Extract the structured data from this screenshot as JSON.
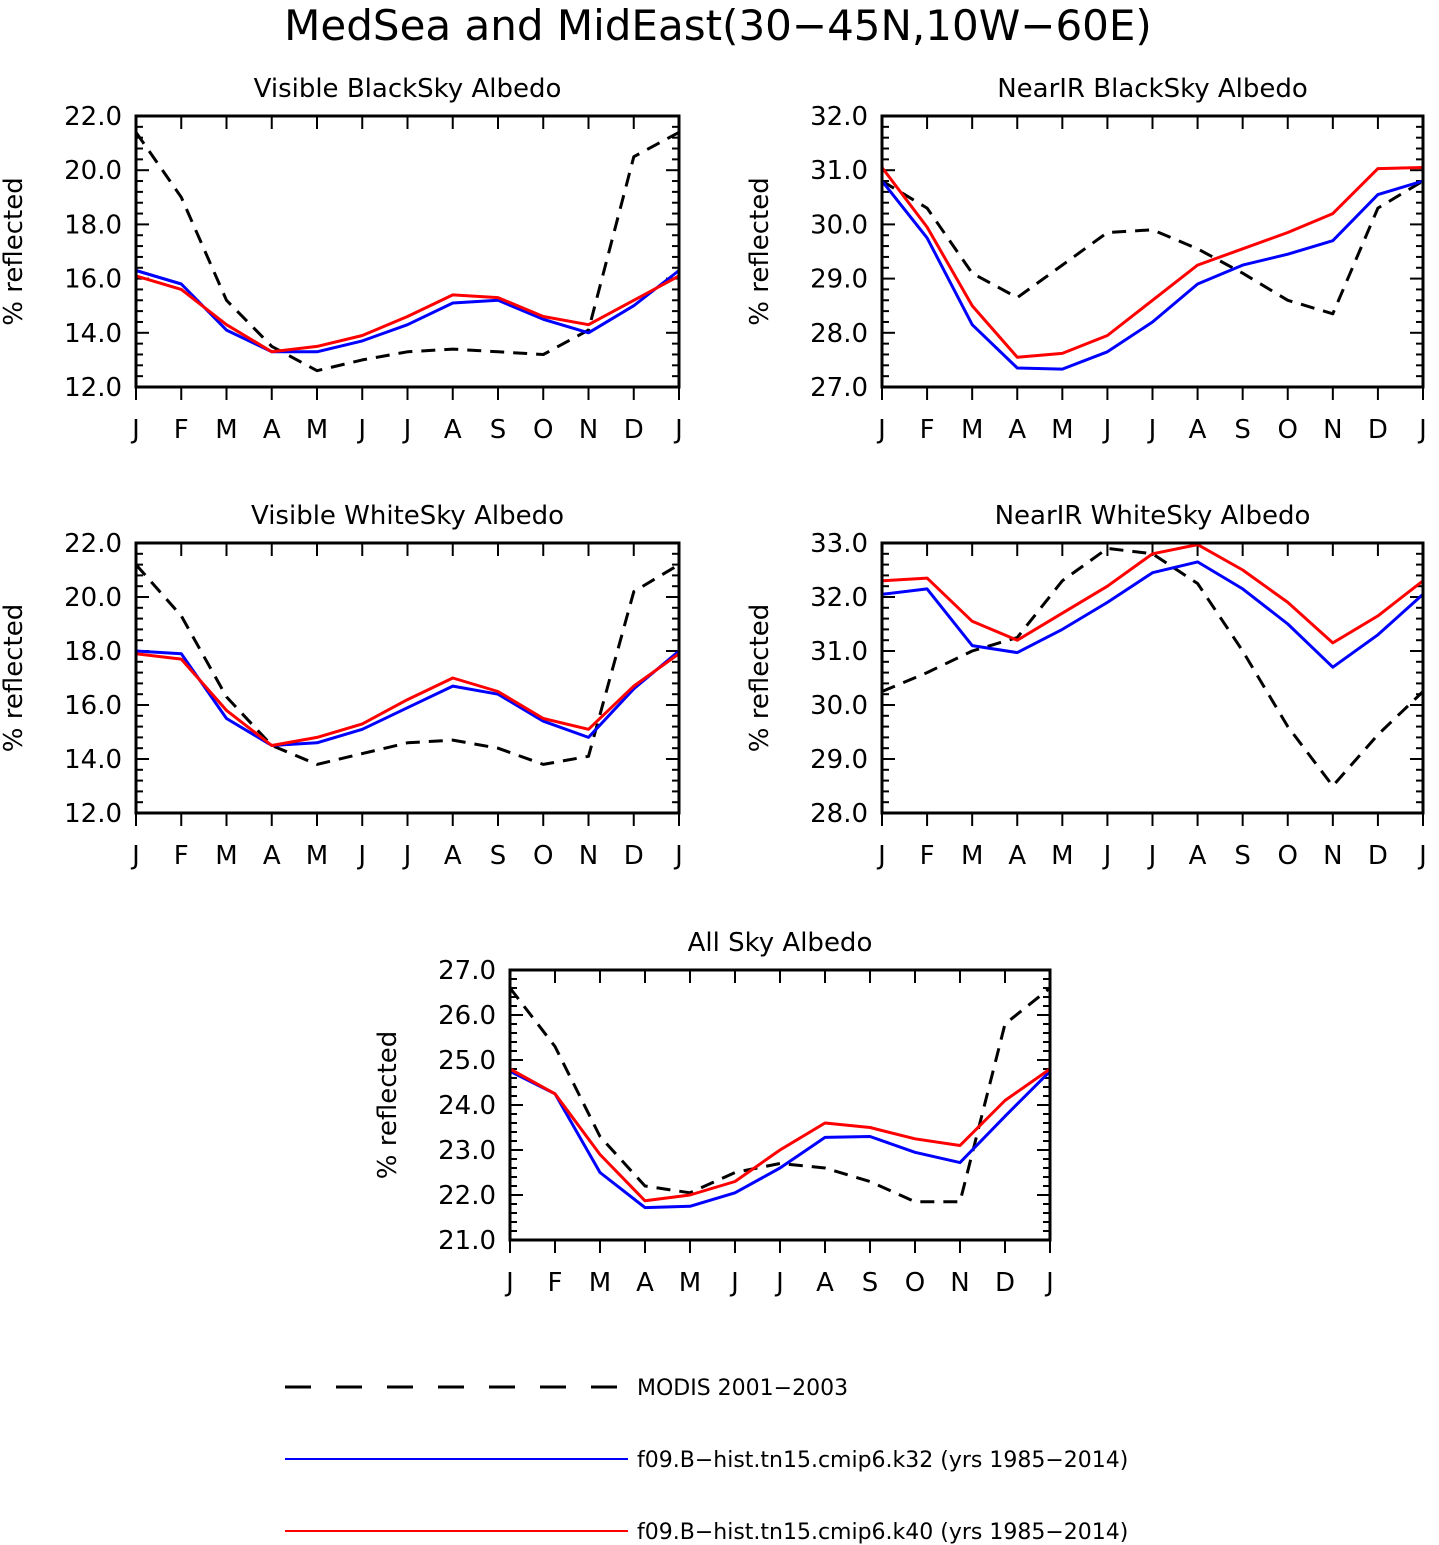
{
  "figure": {
    "title": "MedSea and MidEast(30−45N,10W−60E)"
  },
  "colors": {
    "modis": "#000000",
    "k32": "#0000ff",
    "k40": "#ff0000"
  },
  "legend": [
    {
      "key": "modis",
      "label": "MODIS 2001−2003",
      "style": "dashed"
    },
    {
      "key": "k32",
      "label": "f09.B−hist.tn15.cmip6.k32 (yrs 1985−2014)",
      "style": "solid"
    },
    {
      "key": "k40",
      "label": "f09.B−hist.tn15.cmip6.k40 (yrs 1985−2014)",
      "style": "solid"
    }
  ],
  "chart_data": [
    {
      "type": "line",
      "title": "Visible BlackSky Albedo",
      "ylabel": "% reflected",
      "ylim": [
        12,
        22
      ],
      "yticks": [
        "12.0",
        "14.0",
        "16.0",
        "18.0",
        "20.0",
        "22.0"
      ],
      "categories": [
        "J",
        "F",
        "M",
        "A",
        "M",
        "J",
        "J",
        "A",
        "S",
        "O",
        "N",
        "D",
        "J"
      ],
      "series": [
        {
          "key": "modis",
          "name": "MODIS 2001−2003",
          "values": [
            21.4,
            19.0,
            15.2,
            13.5,
            12.6,
            13.0,
            13.3,
            13.4,
            13.3,
            13.2,
            14.1,
            20.5,
            21.4
          ]
        },
        {
          "key": "k32",
          "name": "f09.B−hist.tn15.cmip6.k32 (yrs 1985−2014)",
          "values": [
            16.3,
            15.8,
            14.1,
            13.3,
            13.3,
            13.7,
            14.3,
            15.1,
            15.2,
            14.5,
            14.0,
            15.0,
            16.3
          ]
        },
        {
          "key": "k40",
          "name": "f09.B−hist.tn15.cmip6.k40 (yrs 1985−2014)",
          "values": [
            16.1,
            15.6,
            14.3,
            13.3,
            13.5,
            13.9,
            14.6,
            15.4,
            15.3,
            14.6,
            14.3,
            15.2,
            16.1
          ]
        }
      ]
    },
    {
      "type": "line",
      "title": "NearIR BlackSky Albedo",
      "ylabel": "% reflected",
      "ylim": [
        27,
        32
      ],
      "yticks": [
        "27.0",
        "28.0",
        "29.0",
        "30.0",
        "31.0",
        "32.0"
      ],
      "categories": [
        "J",
        "F",
        "M",
        "A",
        "M",
        "J",
        "J",
        "A",
        "S",
        "O",
        "N",
        "D",
        "J"
      ],
      "series": [
        {
          "key": "modis",
          "name": "MODIS 2001−2003",
          "values": [
            30.8,
            30.3,
            29.1,
            28.65,
            29.25,
            29.85,
            29.9,
            29.55,
            29.1,
            28.6,
            28.35,
            30.3,
            30.8
          ]
        },
        {
          "key": "k32",
          "name": "f09.B−hist.tn15.cmip6.k32 (yrs 1985−2014)",
          "values": [
            30.8,
            29.75,
            28.15,
            27.35,
            27.33,
            27.65,
            28.2,
            28.9,
            29.25,
            29.45,
            29.7,
            30.55,
            30.8
          ]
        },
        {
          "key": "k40",
          "name": "f09.B−hist.tn15.cmip6.k40 (yrs 1985−2014)",
          "values": [
            31.05,
            29.95,
            28.5,
            27.55,
            27.62,
            27.95,
            28.6,
            29.25,
            29.55,
            29.85,
            30.2,
            31.03,
            31.05
          ]
        }
      ]
    },
    {
      "type": "line",
      "title": "Visible WhiteSky Albedo",
      "ylabel": "% reflected",
      "ylim": [
        12,
        22
      ],
      "yticks": [
        "12.0",
        "14.0",
        "16.0",
        "18.0",
        "20.0",
        "22.0"
      ],
      "categories": [
        "J",
        "F",
        "M",
        "A",
        "M",
        "J",
        "J",
        "A",
        "S",
        "O",
        "N",
        "D",
        "J"
      ],
      "series": [
        {
          "key": "modis",
          "name": "MODIS 2001−2003",
          "values": [
            21.2,
            19.3,
            16.3,
            14.5,
            13.8,
            14.2,
            14.6,
            14.7,
            14.4,
            13.8,
            14.1,
            20.2,
            21.2
          ]
        },
        {
          "key": "k32",
          "name": "f09.B−hist.tn15.cmip6.k32 (yrs 1985−2014)",
          "values": [
            18.0,
            17.9,
            15.5,
            14.5,
            14.6,
            15.1,
            15.9,
            16.7,
            16.4,
            15.4,
            14.8,
            16.6,
            18.0
          ]
        },
        {
          "key": "k40",
          "name": "f09.B−hist.tn15.cmip6.k40 (yrs 1985−2014)",
          "values": [
            17.9,
            17.7,
            15.8,
            14.5,
            14.8,
            15.3,
            16.2,
            17.0,
            16.5,
            15.5,
            15.1,
            16.7,
            17.9
          ]
        }
      ]
    },
    {
      "type": "line",
      "title": "NearIR WhiteSky Albedo",
      "ylabel": "% reflected",
      "ylim": [
        28,
        33
      ],
      "yticks": [
        "28.0",
        "29.0",
        "30.0",
        "31.0",
        "32.0",
        "33.0"
      ],
      "categories": [
        "J",
        "F",
        "M",
        "A",
        "M",
        "J",
        "J",
        "A",
        "S",
        "O",
        "N",
        "D",
        "J"
      ],
      "series": [
        {
          "key": "modis",
          "name": "MODIS 2001−2003",
          "values": [
            30.25,
            30.6,
            31.0,
            31.25,
            32.3,
            32.9,
            32.8,
            32.25,
            31.0,
            29.6,
            28.5,
            29.45,
            30.25
          ]
        },
        {
          "key": "k32",
          "name": "f09.B−hist.tn15.cmip6.k32 (yrs 1985−2014)",
          "values": [
            32.05,
            32.15,
            31.1,
            30.97,
            31.4,
            31.9,
            32.45,
            32.65,
            32.15,
            31.5,
            30.7,
            31.3,
            32.05
          ]
        },
        {
          "key": "k40",
          "name": "f09.B−hist.tn15.cmip6.k40 (yrs 1985−2014)",
          "values": [
            32.3,
            32.35,
            31.55,
            31.2,
            31.7,
            32.2,
            32.8,
            32.97,
            32.5,
            31.9,
            31.15,
            31.65,
            32.3
          ]
        }
      ]
    },
    {
      "type": "line",
      "title": "All Sky Albedo",
      "ylabel": "% reflected",
      "ylim": [
        21,
        27
      ],
      "yticks": [
        "21.0",
        "22.0",
        "23.0",
        "24.0",
        "25.0",
        "26.0",
        "27.0"
      ],
      "categories": [
        "J",
        "F",
        "M",
        "A",
        "M",
        "J",
        "J",
        "A",
        "S",
        "O",
        "N",
        "D",
        "J"
      ],
      "series": [
        {
          "key": "modis",
          "name": "MODIS 2001−2003",
          "values": [
            26.6,
            25.3,
            23.3,
            22.2,
            22.05,
            22.5,
            22.7,
            22.6,
            22.3,
            21.85,
            21.85,
            25.8,
            26.6
          ]
        },
        {
          "key": "k32",
          "name": "f09.B−hist.tn15.cmip6.k32 (yrs 1985−2014)",
          "values": [
            24.75,
            24.25,
            22.5,
            21.72,
            21.75,
            22.05,
            22.6,
            23.28,
            23.3,
            22.95,
            22.72,
            23.75,
            24.75
          ]
        },
        {
          "key": "k40",
          "name": "f09.B−hist.tn15.cmip6.k40 (yrs 1985−2014)",
          "values": [
            24.8,
            24.25,
            22.9,
            21.87,
            22.0,
            22.3,
            23.0,
            23.6,
            23.5,
            23.25,
            23.1,
            24.1,
            24.8
          ]
        }
      ]
    }
  ]
}
